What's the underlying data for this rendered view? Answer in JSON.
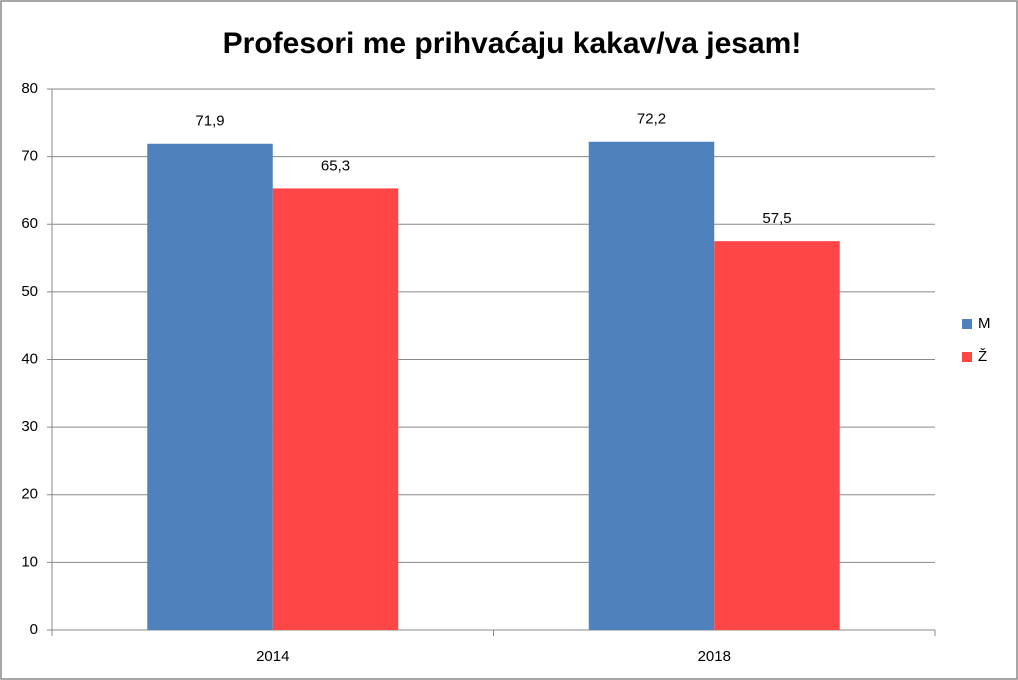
{
  "chart_data": {
    "type": "bar",
    "title": "Profesori me prihvaćaju kakav/va jesam!",
    "categories": [
      "2014",
      "2018"
    ],
    "series": [
      {
        "name": "M",
        "color": "#4f81bd",
        "values": [
          71.9,
          72.2
        ],
        "value_labels": [
          "71,9",
          "72,2"
        ]
      },
      {
        "name": "Ž",
        "color": "#ff4646",
        "values": [
          65.3,
          57.5
        ],
        "value_labels": [
          "65,3",
          "57,5"
        ]
      }
    ],
    "ylim": [
      0,
      80
    ],
    "yticks": [
      0,
      10,
      20,
      30,
      40,
      50,
      60,
      70,
      80
    ],
    "grid": true,
    "legend": "right"
  }
}
